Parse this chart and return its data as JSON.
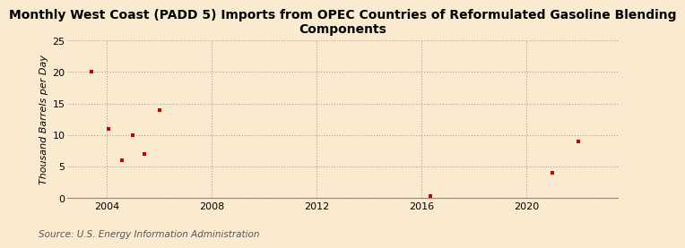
{
  "title": "Monthly West Coast (PADD 5) Imports from OPEC Countries of Reformulated Gasoline Blending\nComponents",
  "ylabel": "Thousand Barrels per Day",
  "source": "Source: U.S. Energy Information Administration",
  "background_color": "#faebd0",
  "plot_background_color": "#faebd0",
  "scatter_color": "#cc0000",
  "scatter_marker": "s",
  "scatter_size": 12,
  "xlim": [
    2002.5,
    2023.5
  ],
  "ylim": [
    0,
    25
  ],
  "yticks": [
    0,
    5,
    10,
    15,
    20,
    25
  ],
  "xticks": [
    2004,
    2008,
    2012,
    2016,
    2020
  ],
  "data_x": [
    2003.42,
    2004.08,
    2004.58,
    2005.0,
    2005.42,
    2006.0,
    2016.33,
    2021.0,
    2022.0
  ],
  "data_y": [
    20.0,
    11.0,
    6.0,
    10.0,
    7.0,
    14.0,
    0.3,
    4.0,
    9.0
  ],
  "grid_color": "#b0a090",
  "grid_linestyle": ":",
  "grid_linewidth": 0.8,
  "title_fontsize": 10,
  "axis_fontsize": 8,
  "source_fontsize": 7.5
}
